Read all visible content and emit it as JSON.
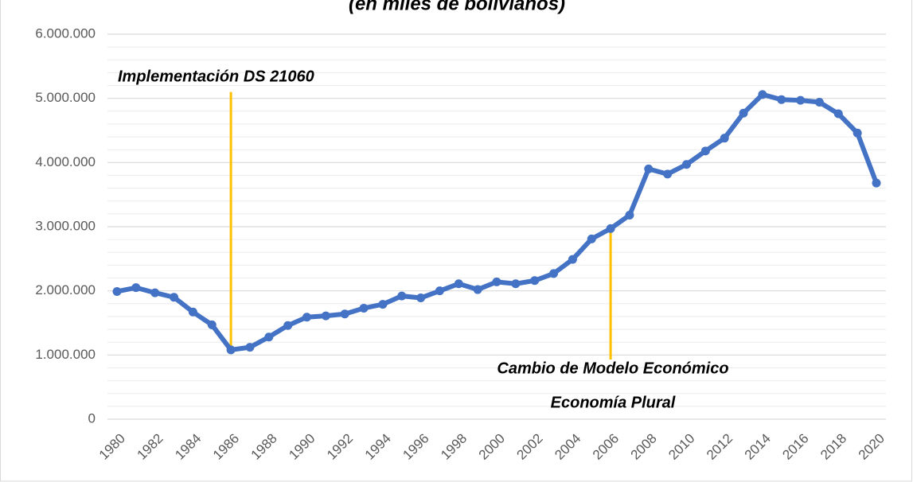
{
  "chart_data": {
    "type": "line",
    "subtitle": "(en miles de bolivianos)",
    "x": [
      1980,
      1981,
      1982,
      1983,
      1984,
      1985,
      1986,
      1987,
      1988,
      1989,
      1990,
      1991,
      1992,
      1993,
      1994,
      1995,
      1996,
      1997,
      1998,
      1999,
      2000,
      2001,
      2002,
      2003,
      2004,
      2005,
      2006,
      2007,
      2008,
      2009,
      2010,
      2011,
      2012,
      2013,
      2014,
      2015,
      2016,
      2017,
      2018,
      2019,
      2020
    ],
    "series": [
      {
        "color": "#4472c4",
        "values": [
          1990000,
          2050000,
          1970000,
          1900000,
          1670000,
          1470000,
          1080000,
          1120000,
          1280000,
          1460000,
          1590000,
          1610000,
          1640000,
          1730000,
          1790000,
          1920000,
          1890000,
          2000000,
          2110000,
          2020000,
          2140000,
          2110000,
          2160000,
          2270000,
          2490000,
          2810000,
          2970000,
          3180000,
          3900000,
          3820000,
          3970000,
          4180000,
          4380000,
          4770000,
          5060000,
          4980000,
          4970000,
          4940000,
          4760000,
          4460000,
          3680000
        ]
      }
    ],
    "xlim": [
      1980,
      2020
    ],
    "xticks": [
      1980,
      1982,
      1984,
      1986,
      1988,
      1990,
      1992,
      1994,
      1996,
      1998,
      2000,
      2002,
      2004,
      2006,
      2008,
      2010,
      2012,
      2014,
      2016,
      2018,
      2020
    ],
    "ylim": [
      0,
      6000000
    ],
    "yticks": [
      0,
      {
        "value": 1000000,
        "label": "1.000.000"
      },
      {
        "value": 2000000,
        "label": "2.000.000"
      },
      {
        "value": 3000000,
        "label": "3.000.000"
      },
      {
        "value": 4000000,
        "label": "4.000.000"
      },
      {
        "value": 5000000,
        "label": "5.000.000"
      },
      {
        "value": 6000000,
        "label": "6.000.000"
      }
    ],
    "grid": true,
    "minor_grid_divisions": 5,
    "annotations": [
      {
        "text": "Implementación DS 21060",
        "x": 1986,
        "y": [
          1080000,
          5100000
        ],
        "color": "#ffc000"
      },
      {
        "text": "Cambio de Modelo Económico",
        "x": 2006,
        "y": [
          930000,
          2970000
        ],
        "color": "#ffc000"
      },
      {
        "text": "Economía Plural"
      }
    ]
  }
}
